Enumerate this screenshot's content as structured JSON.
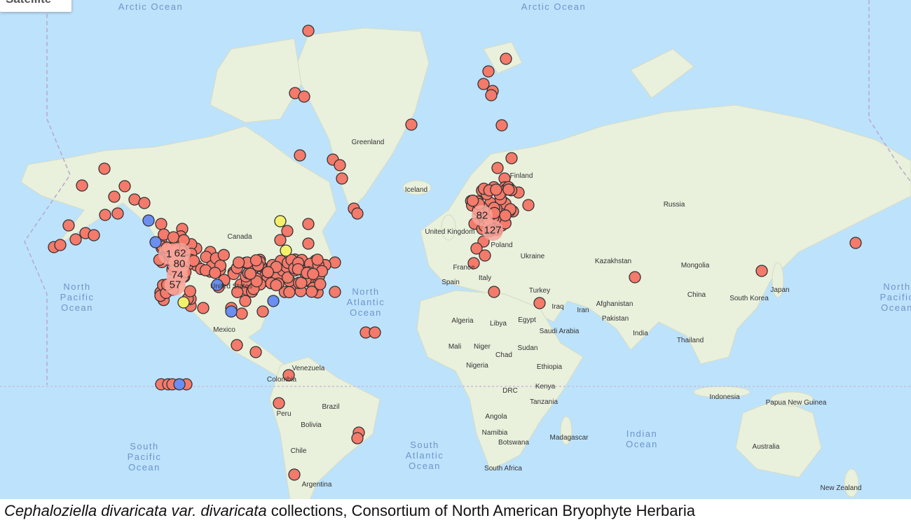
{
  "map_type_button": {
    "label": "Satellite"
  },
  "countries": [
    "Greenland",
    "Iceland",
    "Canada",
    "United States",
    "Mexico",
    "Venezuela",
    "Colombia",
    "Brazil",
    "Peru",
    "Bolivia",
    "Chile",
    "Argentina",
    "United Kingdom",
    "Poland",
    "France",
    "Spain",
    "Italy",
    "Ukraine",
    "Russia",
    "Kazakhstan",
    "Mongolia",
    "Turkey",
    "Iraq",
    "Iran",
    "Afghanistan",
    "Pakistan",
    "India",
    "China",
    "South Korea",
    "Japan",
    "Thailand",
    "Indonesia",
    "Papua New Guinea",
    "Australia",
    "New Zealand",
    "Algeria",
    "Libya",
    "Egypt",
    "Saudi Arabia",
    "Mali",
    "Niger",
    "Chad",
    "Sudan",
    "Nigeria",
    "Ethiopia",
    "DRC",
    "Kenya",
    "Tanzania",
    "Angola",
    "Namibia",
    "Botswana",
    "Madagascar",
    "South Africa",
    "Finland"
  ],
  "oceans": {
    "arctic": "Arctic Ocean",
    "north_pacific": "North\nPacific\nOcean",
    "north_atlantic": "North\nAtlantic\nOcean",
    "south_pacific": "South\nPacific\nOcean",
    "south_atlantic": "South\nAtlantic\nOcean",
    "indian": "Indian\nOcean"
  },
  "clusters": [
    "1",
    "62",
    "80",
    "74",
    "57",
    "82",
    "127"
  ],
  "colors": {
    "ocean": "#bde2fc",
    "land": "#e9f0dc",
    "marker": "#f47a6b",
    "marker_blue": "#6b8ef0",
    "marker_yellow": "#f5f06a",
    "cluster": "#f8a49a"
  },
  "caption": {
    "species": "Cephaloziella divaricata var. divaricata",
    "text": " collections, Consortium of North American Bryophyte Herbaria"
  }
}
